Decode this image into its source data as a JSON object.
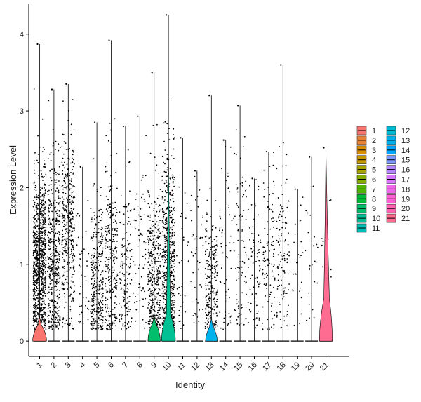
{
  "chart_data": {
    "type": "violin",
    "xlabel": "Identity",
    "ylabel": "Expression Level",
    "ylim": [
      -0.2,
      4.4
    ],
    "yticks": [
      0,
      1,
      2,
      3,
      4
    ],
    "grid": false,
    "legend_position": "right",
    "categories": [
      "1",
      "2",
      "3",
      "4",
      "5",
      "6",
      "7",
      "8",
      "9",
      "10",
      "11",
      "12",
      "13",
      "14",
      "15",
      "16",
      "17",
      "18",
      "19",
      "20",
      "21"
    ],
    "colors": [
      "#F8766D",
      "#EB8335",
      "#DA8E00",
      "#C49A00",
      "#A9A400",
      "#86AC00",
      "#53B400",
      "#00BA38",
      "#00BE6C",
      "#00C094",
      "#00BFB6",
      "#00BBD4",
      "#00B2EC",
      "#00A6FF",
      "#7C97FF",
      "#B385FF",
      "#D874FD",
      "#EF67EB",
      "#FD61D3",
      "#FF64B3",
      "#FF6C91"
    ],
    "series": [
      {
        "name": "1",
        "max": 3.87,
        "dots": 900,
        "mean": 1.0,
        "sd": 0.6,
        "violin_peak": 0.1,
        "violin_width": 0.45
      },
      {
        "name": "2",
        "max": 3.28,
        "dots": 450,
        "mean": 1.05,
        "sd": 0.65,
        "violin_peak": 0.0,
        "violin_width": 0.0
      },
      {
        "name": "3",
        "max": 3.35,
        "dots": 380,
        "mean": 1.5,
        "sd": 0.6,
        "violin_peak": 0.0,
        "violin_width": 0.0
      },
      {
        "name": "4",
        "max": 2.27,
        "dots": 40,
        "mean": 0.7,
        "sd": 0.5,
        "violin_peak": 0.0,
        "violin_width": 0.0
      },
      {
        "name": "5",
        "max": 2.85,
        "dots": 330,
        "mean": 0.7,
        "sd": 0.6,
        "violin_peak": 0.0,
        "violin_width": 0.0
      },
      {
        "name": "6",
        "max": 3.92,
        "dots": 280,
        "mean": 1.05,
        "sd": 0.65,
        "violin_peak": 0.0,
        "violin_width": 0.0
      },
      {
        "name": "7",
        "max": 2.8,
        "dots": 160,
        "mean": 0.85,
        "sd": 0.6,
        "violin_peak": 0.0,
        "violin_width": 0.0
      },
      {
        "name": "8",
        "max": 2.93,
        "dots": 70,
        "mean": 1.1,
        "sd": 0.6,
        "violin_peak": 0.0,
        "violin_width": 0.0
      },
      {
        "name": "9",
        "max": 3.5,
        "dots": 380,
        "mean": 0.85,
        "sd": 0.55,
        "violin_peak": 0.12,
        "violin_width": 0.4
      },
      {
        "name": "10",
        "max": 4.25,
        "dots": 600,
        "mean": 1.05,
        "sd": 0.75,
        "violin_peak": 0.12,
        "violin_width": 0.45
      },
      {
        "name": "11",
        "max": 2.65,
        "dots": 30,
        "mean": 0.9,
        "sd": 0.6,
        "violin_peak": 0.0,
        "violin_width": 0.0
      },
      {
        "name": "12",
        "max": 2.22,
        "dots": 45,
        "mean": 1.1,
        "sd": 0.6,
        "violin_peak": 0.0,
        "violin_width": 0.0
      },
      {
        "name": "13",
        "max": 3.2,
        "dots": 220,
        "mean": 0.7,
        "sd": 0.5,
        "violin_peak": 0.08,
        "violin_width": 0.38
      },
      {
        "name": "14",
        "max": 2.62,
        "dots": 60,
        "mean": 1.0,
        "sd": 0.6,
        "violin_peak": 0.0,
        "violin_width": 0.0
      },
      {
        "name": "15",
        "max": 3.07,
        "dots": 90,
        "mean": 1.1,
        "sd": 0.7,
        "violin_peak": 0.0,
        "violin_width": 0.0
      },
      {
        "name": "16",
        "max": 2.12,
        "dots": 70,
        "mean": 0.85,
        "sd": 0.5,
        "violin_peak": 0.0,
        "violin_width": 0.0
      },
      {
        "name": "17",
        "max": 2.47,
        "dots": 110,
        "mean": 1.1,
        "sd": 0.55,
        "violin_peak": 0.0,
        "violin_width": 0.0
      },
      {
        "name": "18",
        "max": 3.6,
        "dots": 120,
        "mean": 1.1,
        "sd": 0.6,
        "violin_peak": 0.0,
        "violin_width": 0.0
      },
      {
        "name": "19",
        "max": 1.98,
        "dots": 25,
        "mean": 0.9,
        "sd": 0.5,
        "violin_peak": 0.0,
        "violin_width": 0.0
      },
      {
        "name": "20",
        "max": 2.4,
        "dots": 25,
        "mean": 1.0,
        "sd": 0.6,
        "violin_peak": 0.0,
        "violin_width": 0.0
      },
      {
        "name": "21",
        "max": 2.52,
        "dots": 20,
        "mean": 1.0,
        "sd": 0.6,
        "violin_peak": 0.35,
        "violin_width": 0.42
      }
    ]
  }
}
